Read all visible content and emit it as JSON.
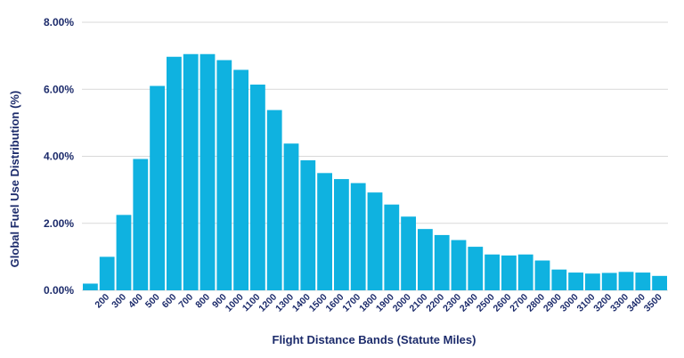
{
  "chart_data": {
    "type": "bar",
    "title": "",
    "xlabel": "Flight Distance Bands (Statute Miles)",
    "ylabel": "Global Fuel Use Distribution (%)",
    "ylim": [
      0,
      8
    ],
    "grid": true,
    "bar_color": "#0fb2e0",
    "text_color": "#1c2b6b",
    "y_ticks": [
      "0.00%",
      "2.00%",
      "4.00%",
      "6.00%",
      "8.00%"
    ],
    "categories": [
      "",
      "200",
      "300",
      "400",
      "500",
      "600",
      "700",
      "800",
      "900",
      "1000",
      "1100",
      "1200",
      "1300",
      "1400",
      "1500",
      "1600",
      "1700",
      "1800",
      "1900",
      "2000",
      "2100",
      "2200",
      "2300",
      "2400",
      "2500",
      "2600",
      "2700",
      "2800",
      "2900",
      "3000",
      "3100",
      "3200",
      "3300",
      "3400",
      "3500"
    ],
    "values": [
      0.2,
      1.0,
      2.25,
      3.92,
      6.1,
      6.97,
      7.05,
      7.05,
      6.87,
      6.58,
      6.14,
      5.38,
      4.38,
      3.88,
      3.5,
      3.32,
      3.2,
      2.92,
      2.56,
      2.2,
      1.83,
      1.65,
      1.5,
      1.3,
      1.07,
      1.04,
      1.07,
      0.89,
      0.62,
      0.53,
      0.5,
      0.52,
      0.55,
      0.53,
      0.43
    ]
  }
}
